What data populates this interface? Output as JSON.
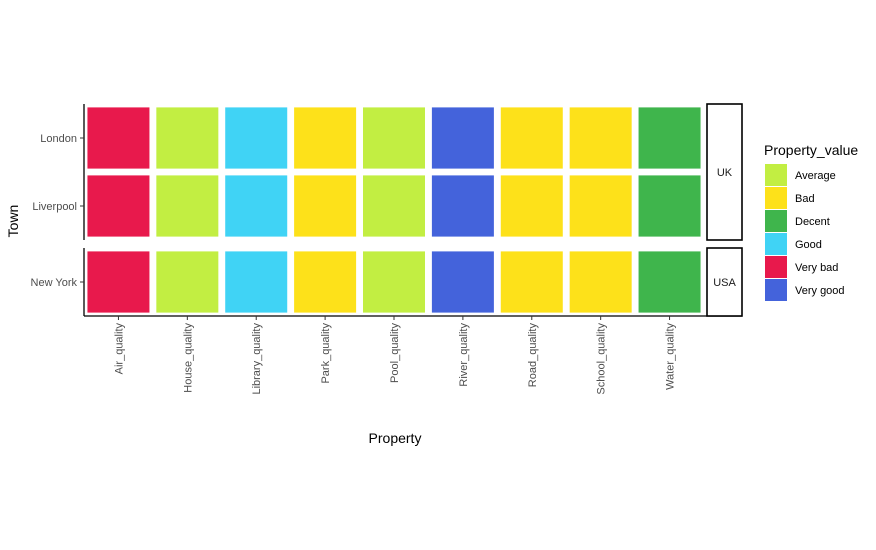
{
  "chart_data": {
    "type": "heatmap",
    "title": "",
    "xlabel": "Property",
    "ylabel": "Town",
    "x_categories": [
      "Air_quality",
      "House_quality",
      "Library_quality",
      "Park_quality",
      "Pool_quality",
      "River_quality",
      "Road_quality",
      "School_quality",
      "Water_quality"
    ],
    "facets": [
      {
        "label": "UK",
        "rows": [
          {
            "town": "London",
            "values": [
              "Very bad",
              "Average",
              "Good",
              "Bad",
              "Average",
              "Very good",
              "Bad",
              "Bad",
              "Decent"
            ]
          },
          {
            "town": "Liverpool",
            "values": [
              "Very bad",
              "Average",
              "Good",
              "Bad",
              "Average",
              "Very good",
              "Bad",
              "Bad",
              "Decent"
            ]
          }
        ]
      },
      {
        "label": "USA",
        "rows": [
          {
            "town": "New York",
            "values": [
              "Very bad",
              "Average",
              "Good",
              "Bad",
              "Average",
              "Very good",
              "Bad",
              "Bad",
              "Decent"
            ]
          }
        ]
      }
    ],
    "legend": {
      "title": "Property_value",
      "position": "right",
      "entries": [
        {
          "label": "Average",
          "color": "#C2EE42"
        },
        {
          "label": "Bad",
          "color": "#FDE11A"
        },
        {
          "label": "Decent",
          "color": "#3FB54C"
        },
        {
          "label": "Good",
          "color": "#40D3F5"
        },
        {
          "label": "Very bad",
          "color": "#E8194C"
        },
        {
          "label": "Very good",
          "color": "#4463DB"
        }
      ]
    },
    "grid": false
  }
}
